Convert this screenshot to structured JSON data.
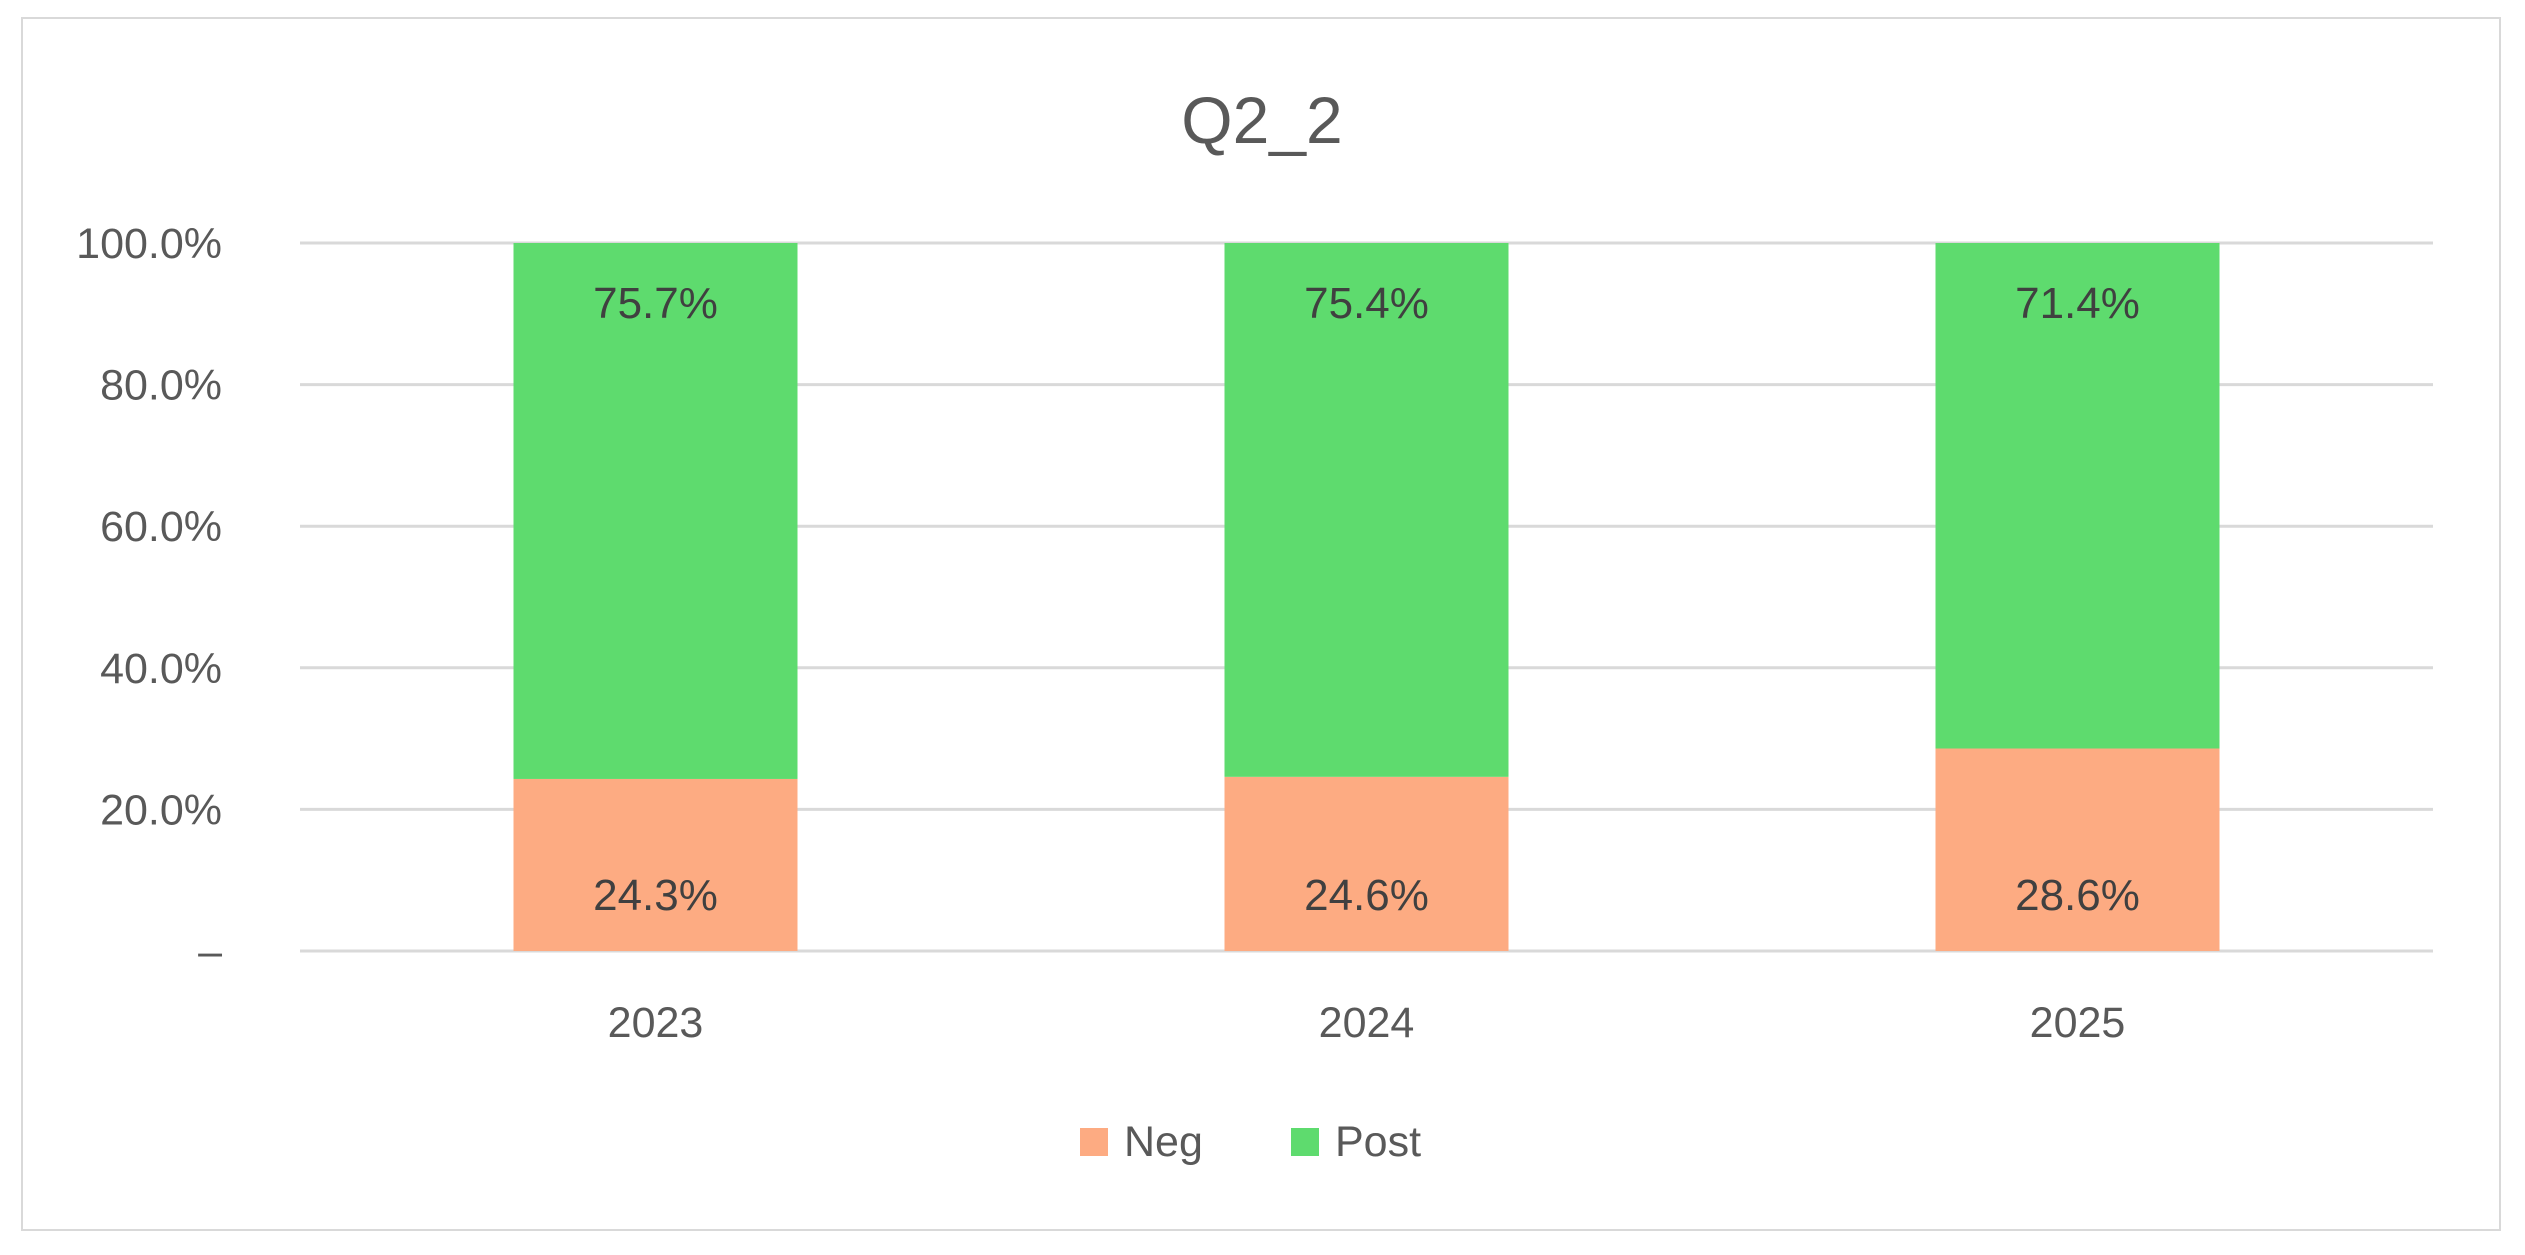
{
  "chart_data": {
    "type": "bar",
    "stacked": true,
    "title": "Q2_2",
    "xlabel": "",
    "ylabel": "",
    "categories": [
      "2023",
      "2024",
      "2025"
    ],
    "series": [
      {
        "name": "Neg",
        "values": [
          24.3,
          24.6,
          28.6
        ],
        "labels": [
          "24.3%",
          "24.6%",
          "28.6%"
        ],
        "color": "#FDAB82"
      },
      {
        "name": "Post",
        "values": [
          75.7,
          75.4,
          71.4
        ],
        "labels": [
          "75.7%",
          "75.4%",
          "71.4%"
        ],
        "color": "#5EDB6E"
      }
    ],
    "ylim": [
      0,
      100
    ],
    "yticks": [
      0,
      20,
      40,
      60,
      80,
      100
    ],
    "ytick_labels": [
      "–",
      "20.0%",
      "40.0%",
      "60.0%",
      "80.0%",
      "100.0%"
    ],
    "grid": true,
    "gridline_color": "#d9d9d9",
    "legend_position": "bottom"
  }
}
